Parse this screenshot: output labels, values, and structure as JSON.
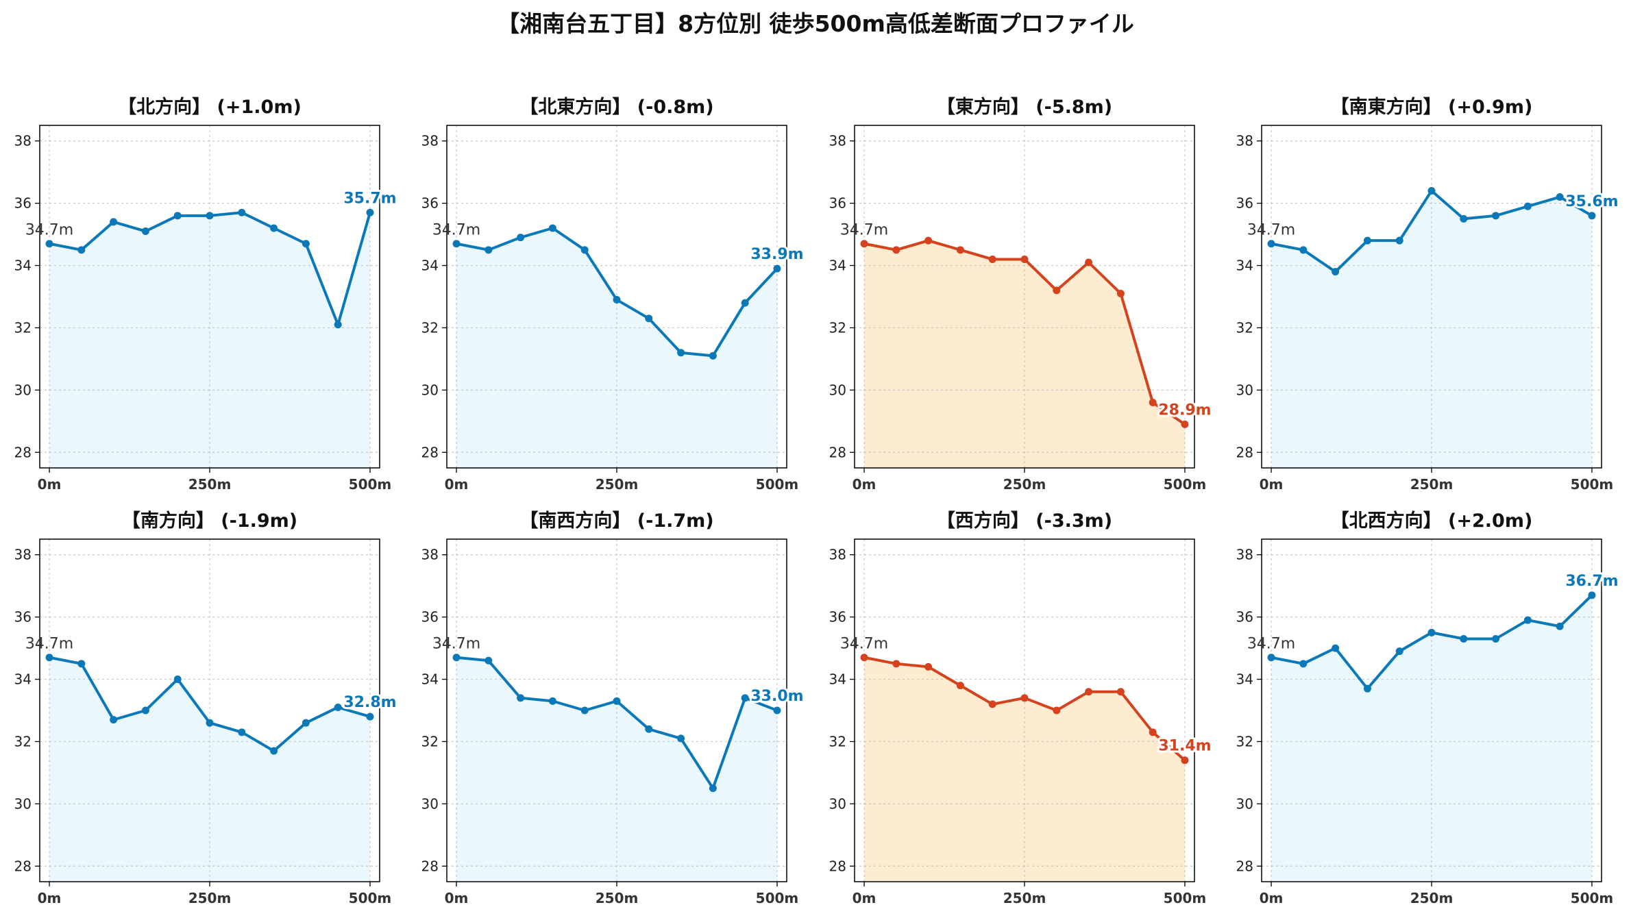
{
  "title": "【湘南台五丁目】8方位別 徒歩500m高低差断面プロファイル",
  "colors": {
    "up_line": "#0b78b8",
    "up_fill": "#eaf7fc",
    "down_line": "#d4431e",
    "down_fill": "#fdecd0",
    "start_label": "#333333",
    "grid": "#bbbbbb"
  },
  "axes": {
    "x_ticks": [
      0,
      250,
      500
    ],
    "x_tick_labels": [
      "0m",
      "250m",
      "500m"
    ],
    "y_ticks": [
      28,
      30,
      32,
      34,
      36,
      38
    ],
    "y_tick_labels": [
      "28",
      "30",
      "32",
      "34",
      "36",
      "38"
    ],
    "ylim": [
      27.5,
      38.5
    ],
    "xlim": [
      -15,
      515
    ],
    "grid": true
  },
  "chart_data": [
    {
      "type": "line",
      "title": "【北方向】 (+1.0m)",
      "style": "up",
      "x": [
        0,
        50,
        100,
        150,
        200,
        250,
        300,
        350,
        400,
        450,
        500
      ],
      "values": [
        34.7,
        34.5,
        35.4,
        35.1,
        35.6,
        35.6,
        35.7,
        35.2,
        34.7,
        32.1,
        35.7
      ],
      "start_label": "34.7m",
      "end_label": "35.7m"
    },
    {
      "type": "line",
      "title": "【北東方向】 (-0.8m)",
      "style": "up",
      "x": [
        0,
        50,
        100,
        150,
        200,
        250,
        300,
        350,
        400,
        450,
        500
      ],
      "values": [
        34.7,
        34.5,
        34.9,
        35.2,
        34.5,
        32.9,
        32.3,
        31.2,
        31.1,
        32.8,
        33.9
      ],
      "start_label": "34.7m",
      "end_label": "33.9m"
    },
    {
      "type": "line",
      "title": "【東方向】 (-5.8m)",
      "style": "down",
      "x": [
        0,
        50,
        100,
        150,
        200,
        250,
        300,
        350,
        400,
        450,
        500
      ],
      "values": [
        34.7,
        34.5,
        34.8,
        34.5,
        34.2,
        34.2,
        33.2,
        34.1,
        33.1,
        29.6,
        28.9
      ],
      "start_label": "34.7m",
      "end_label": "28.9m"
    },
    {
      "type": "line",
      "title": "【南東方向】 (+0.9m)",
      "style": "up",
      "x": [
        0,
        50,
        100,
        150,
        200,
        250,
        300,
        350,
        400,
        450,
        500
      ],
      "values": [
        34.7,
        34.5,
        33.8,
        34.8,
        34.8,
        36.4,
        35.5,
        35.6,
        35.9,
        36.2,
        35.6
      ],
      "start_label": "34.7m",
      "end_label": "35.6m"
    },
    {
      "type": "line",
      "title": "【南方向】 (-1.9m)",
      "style": "up",
      "x": [
        0,
        50,
        100,
        150,
        200,
        250,
        300,
        350,
        400,
        450,
        500
      ],
      "values": [
        34.7,
        34.5,
        32.7,
        33.0,
        34.0,
        32.6,
        32.3,
        31.7,
        32.6,
        33.1,
        32.8
      ],
      "start_label": "34.7m",
      "end_label": "32.8m"
    },
    {
      "type": "line",
      "title": "【南西方向】 (-1.7m)",
      "style": "up",
      "x": [
        0,
        50,
        100,
        150,
        200,
        250,
        300,
        350,
        400,
        450,
        500
      ],
      "values": [
        34.7,
        34.6,
        33.4,
        33.3,
        33.0,
        33.3,
        32.4,
        32.1,
        30.5,
        33.4,
        33.0
      ],
      "start_label": "34.7m",
      "end_label": "33.0m"
    },
    {
      "type": "line",
      "title": "【西方向】 (-3.3m)",
      "style": "down",
      "x": [
        0,
        50,
        100,
        150,
        200,
        250,
        300,
        350,
        400,
        450,
        500
      ],
      "values": [
        34.7,
        34.5,
        34.4,
        33.8,
        33.2,
        33.4,
        33.0,
        33.6,
        33.6,
        32.3,
        31.4
      ],
      "start_label": "34.7m",
      "end_label": "31.4m"
    },
    {
      "type": "line",
      "title": "【北西方向】 (+2.0m)",
      "style": "up",
      "x": [
        0,
        50,
        100,
        150,
        200,
        250,
        300,
        350,
        400,
        450,
        500
      ],
      "values": [
        34.7,
        34.5,
        35.0,
        33.7,
        34.9,
        35.5,
        35.3,
        35.3,
        35.9,
        35.7,
        36.7
      ],
      "start_label": "34.7m",
      "end_label": "36.7m"
    }
  ]
}
